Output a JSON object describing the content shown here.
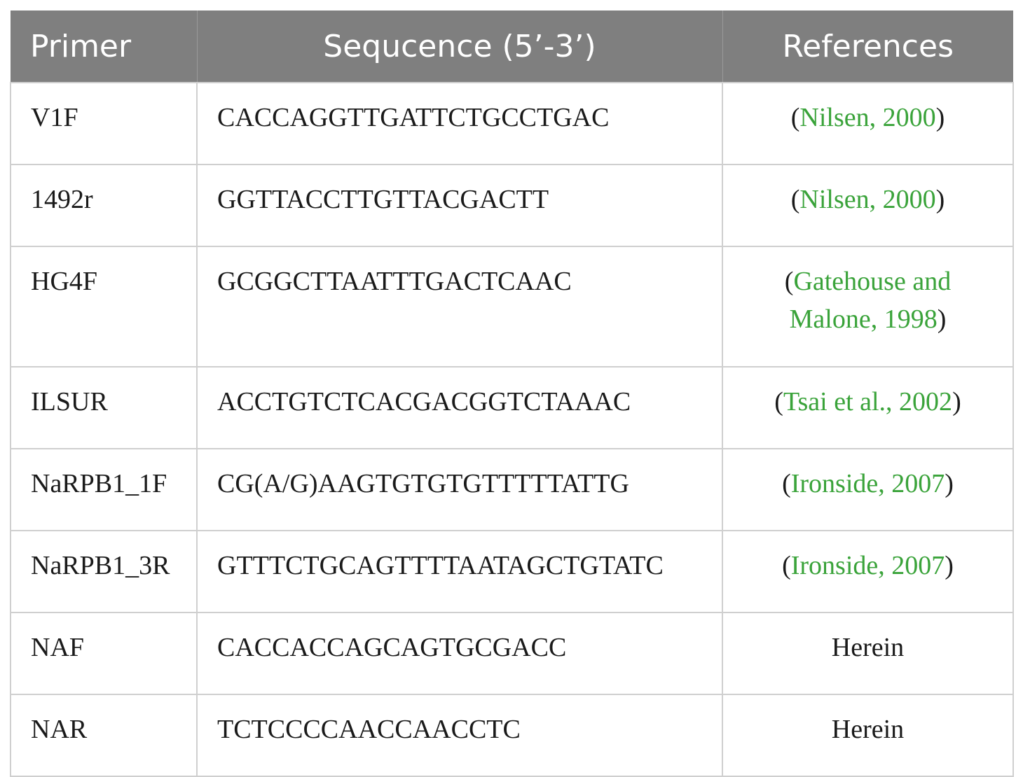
{
  "table": {
    "headers": [
      "Primer",
      "Sequcence (5’-3’)",
      "References"
    ],
    "rows": [
      {
        "primer": "V1F",
        "sequence": "CACCAGGTTGATTCTGCCTGAC",
        "ref_open": "(",
        "ref_cite": "Nilsen, 2000",
        "ref_close": ")"
      },
      {
        "primer": "1492r",
        "sequence": "GGTTACCTTGTTACGACTT",
        "ref_open": "(",
        "ref_cite": "Nilsen, 2000",
        "ref_close": ")"
      },
      {
        "primer": "HG4F",
        "sequence": "GCGGCTTAATTTGACTCAAC",
        "ref_open": "(",
        "ref_cite_line1": "Gatehouse and",
        "ref_cite_line2": "Malone, 1998",
        "ref_close": ")"
      },
      {
        "primer": "ILSUR",
        "sequence": "ACCTGTCTCACGACGGTCTAAAC",
        "ref_open": "(",
        "ref_cite": "Tsai et al., 2002",
        "ref_close": ")"
      },
      {
        "primer": "NaRPB1_1F",
        "sequence": "CG(A/G)AAGTGTGTGTTTTTATTG",
        "ref_open": "(",
        "ref_cite": "Ironside, 2007",
        "ref_close": ")"
      },
      {
        "primer": "NaRPB1_3R",
        "sequence": "GTTTCTGCAGTTTTAATAGCTGTATC",
        "ref_open": "(",
        "ref_cite": "Ironside, 2007",
        "ref_close": ")"
      },
      {
        "primer": "NAF",
        "sequence": "CACCACCAGCAGTGCGACC",
        "ref_text": "Herein"
      },
      {
        "primer": "NAR",
        "sequence": "TCTCCCCAACCAACCTC",
        "ref_text": "Herein"
      }
    ]
  },
  "colors": {
    "header_bg": "#7f7f7f",
    "header_text": "#ffffff",
    "citation_link": "#3aa33a",
    "grid": "#cfcfcf"
  }
}
